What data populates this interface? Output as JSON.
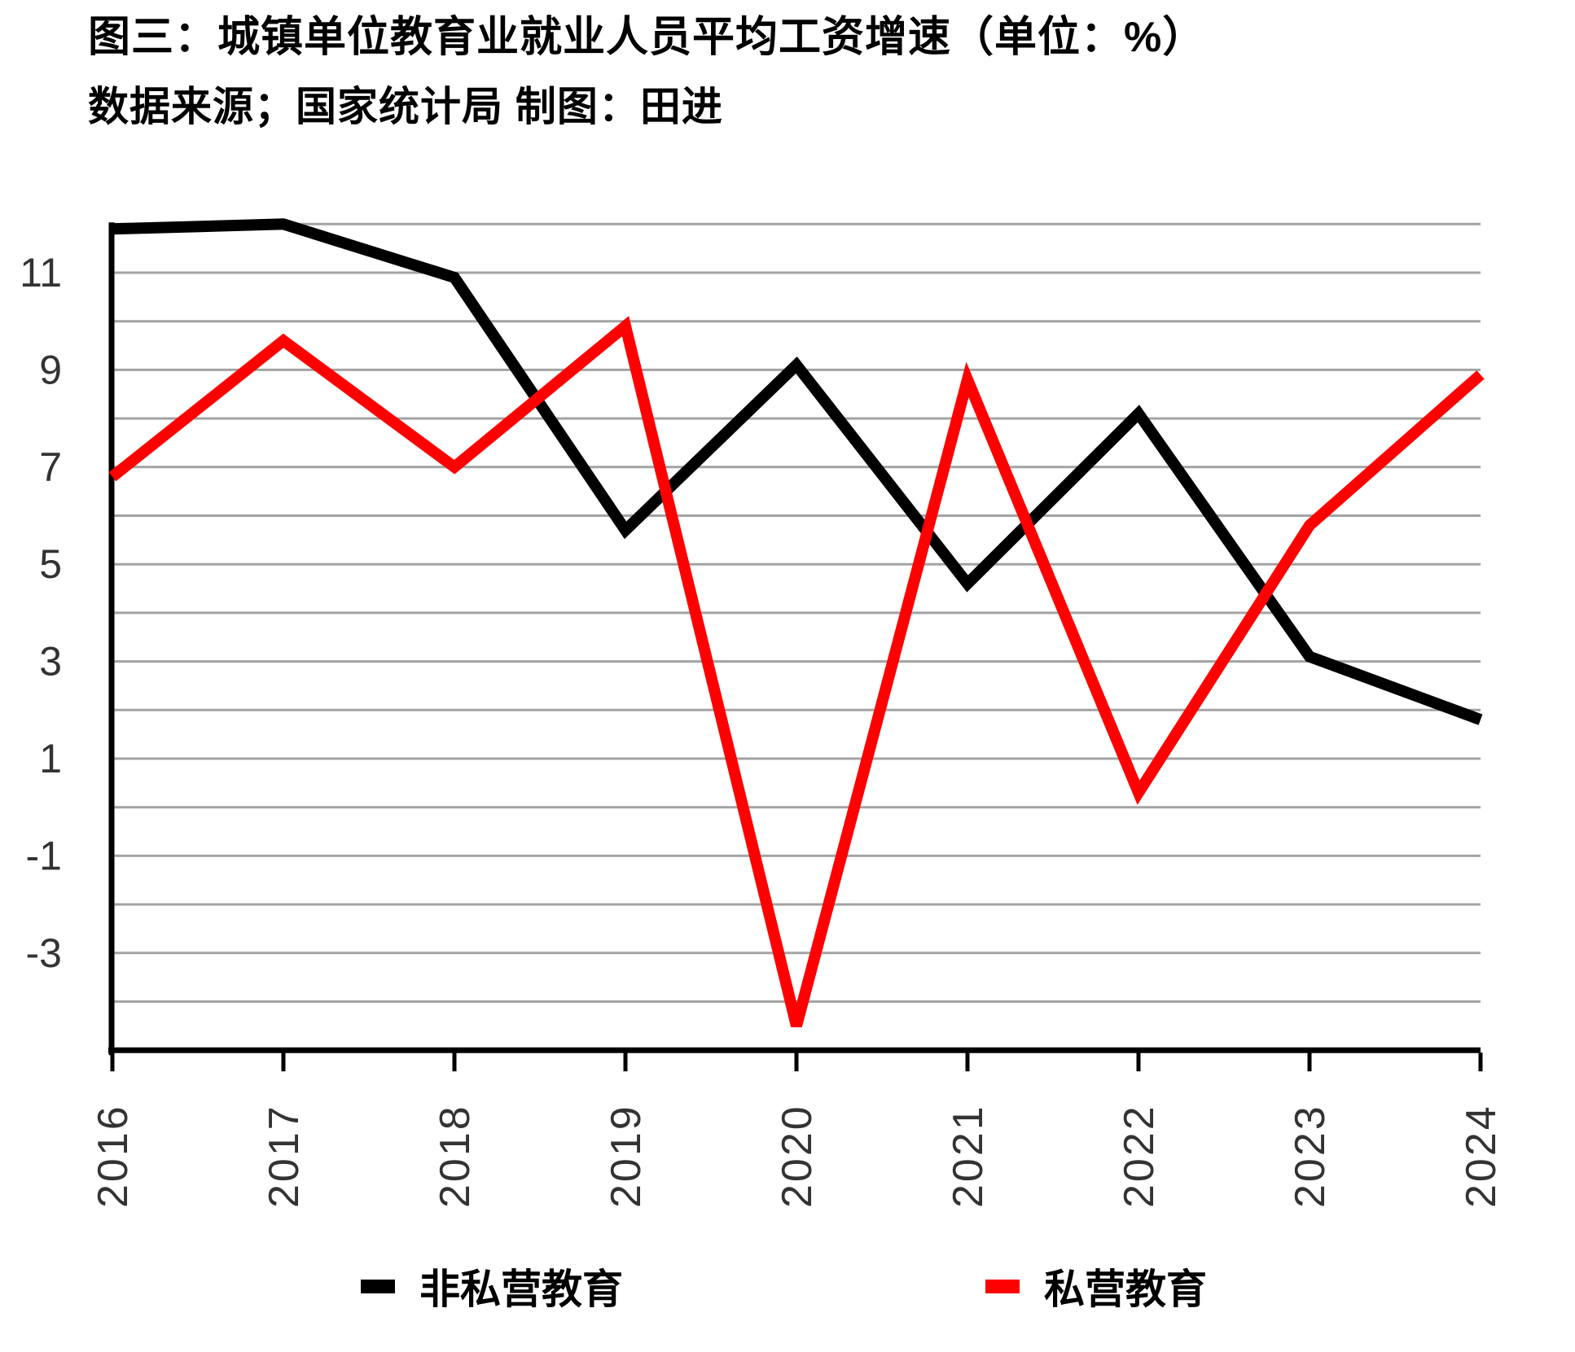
{
  "title": {
    "line1": "图三：城镇单位教育业就业人员平均工资增速（单位：%）",
    "line2": "数据来源；国家统计局 制图：田进"
  },
  "chart_data": {
    "type": "line",
    "title": "城镇单位教育业就业人员平均工资增速（单位：%）",
    "source_note": "数据来源；国家统计局 制图：田进",
    "categories": [
      "2016",
      "2017",
      "2018",
      "2019",
      "2020",
      "2021",
      "2022",
      "2023",
      "2024"
    ],
    "series": [
      {
        "name": "非私营教育",
        "color": "#000000",
        "values": [
          11.9,
          12.0,
          10.9,
          5.7,
          9.1,
          4.6,
          8.1,
          3.1,
          1.8
        ]
      },
      {
        "name": "私营教育",
        "color": "#ff0000",
        "values": [
          6.8,
          9.6,
          7.0,
          9.9,
          -4.5,
          8.8,
          0.3,
          5.8,
          8.9
        ]
      }
    ],
    "xlabel": "",
    "ylabel": "",
    "ylim": [
      -5,
      12
    ],
    "grid": true,
    "grid_step": 1,
    "gridline_color": "#a3a3a3",
    "axis_color": "#000000",
    "tick_label_color": "#333333",
    "y_tick_labels": [
      "11",
      "9",
      "7",
      "5",
      "3",
      "1",
      "-1",
      "-3"
    ],
    "y_tick_values": [
      11,
      9,
      7,
      5,
      3,
      1,
      -1,
      -3
    ],
    "x_tick_rotation": -90,
    "legend_position": "bottom"
  }
}
